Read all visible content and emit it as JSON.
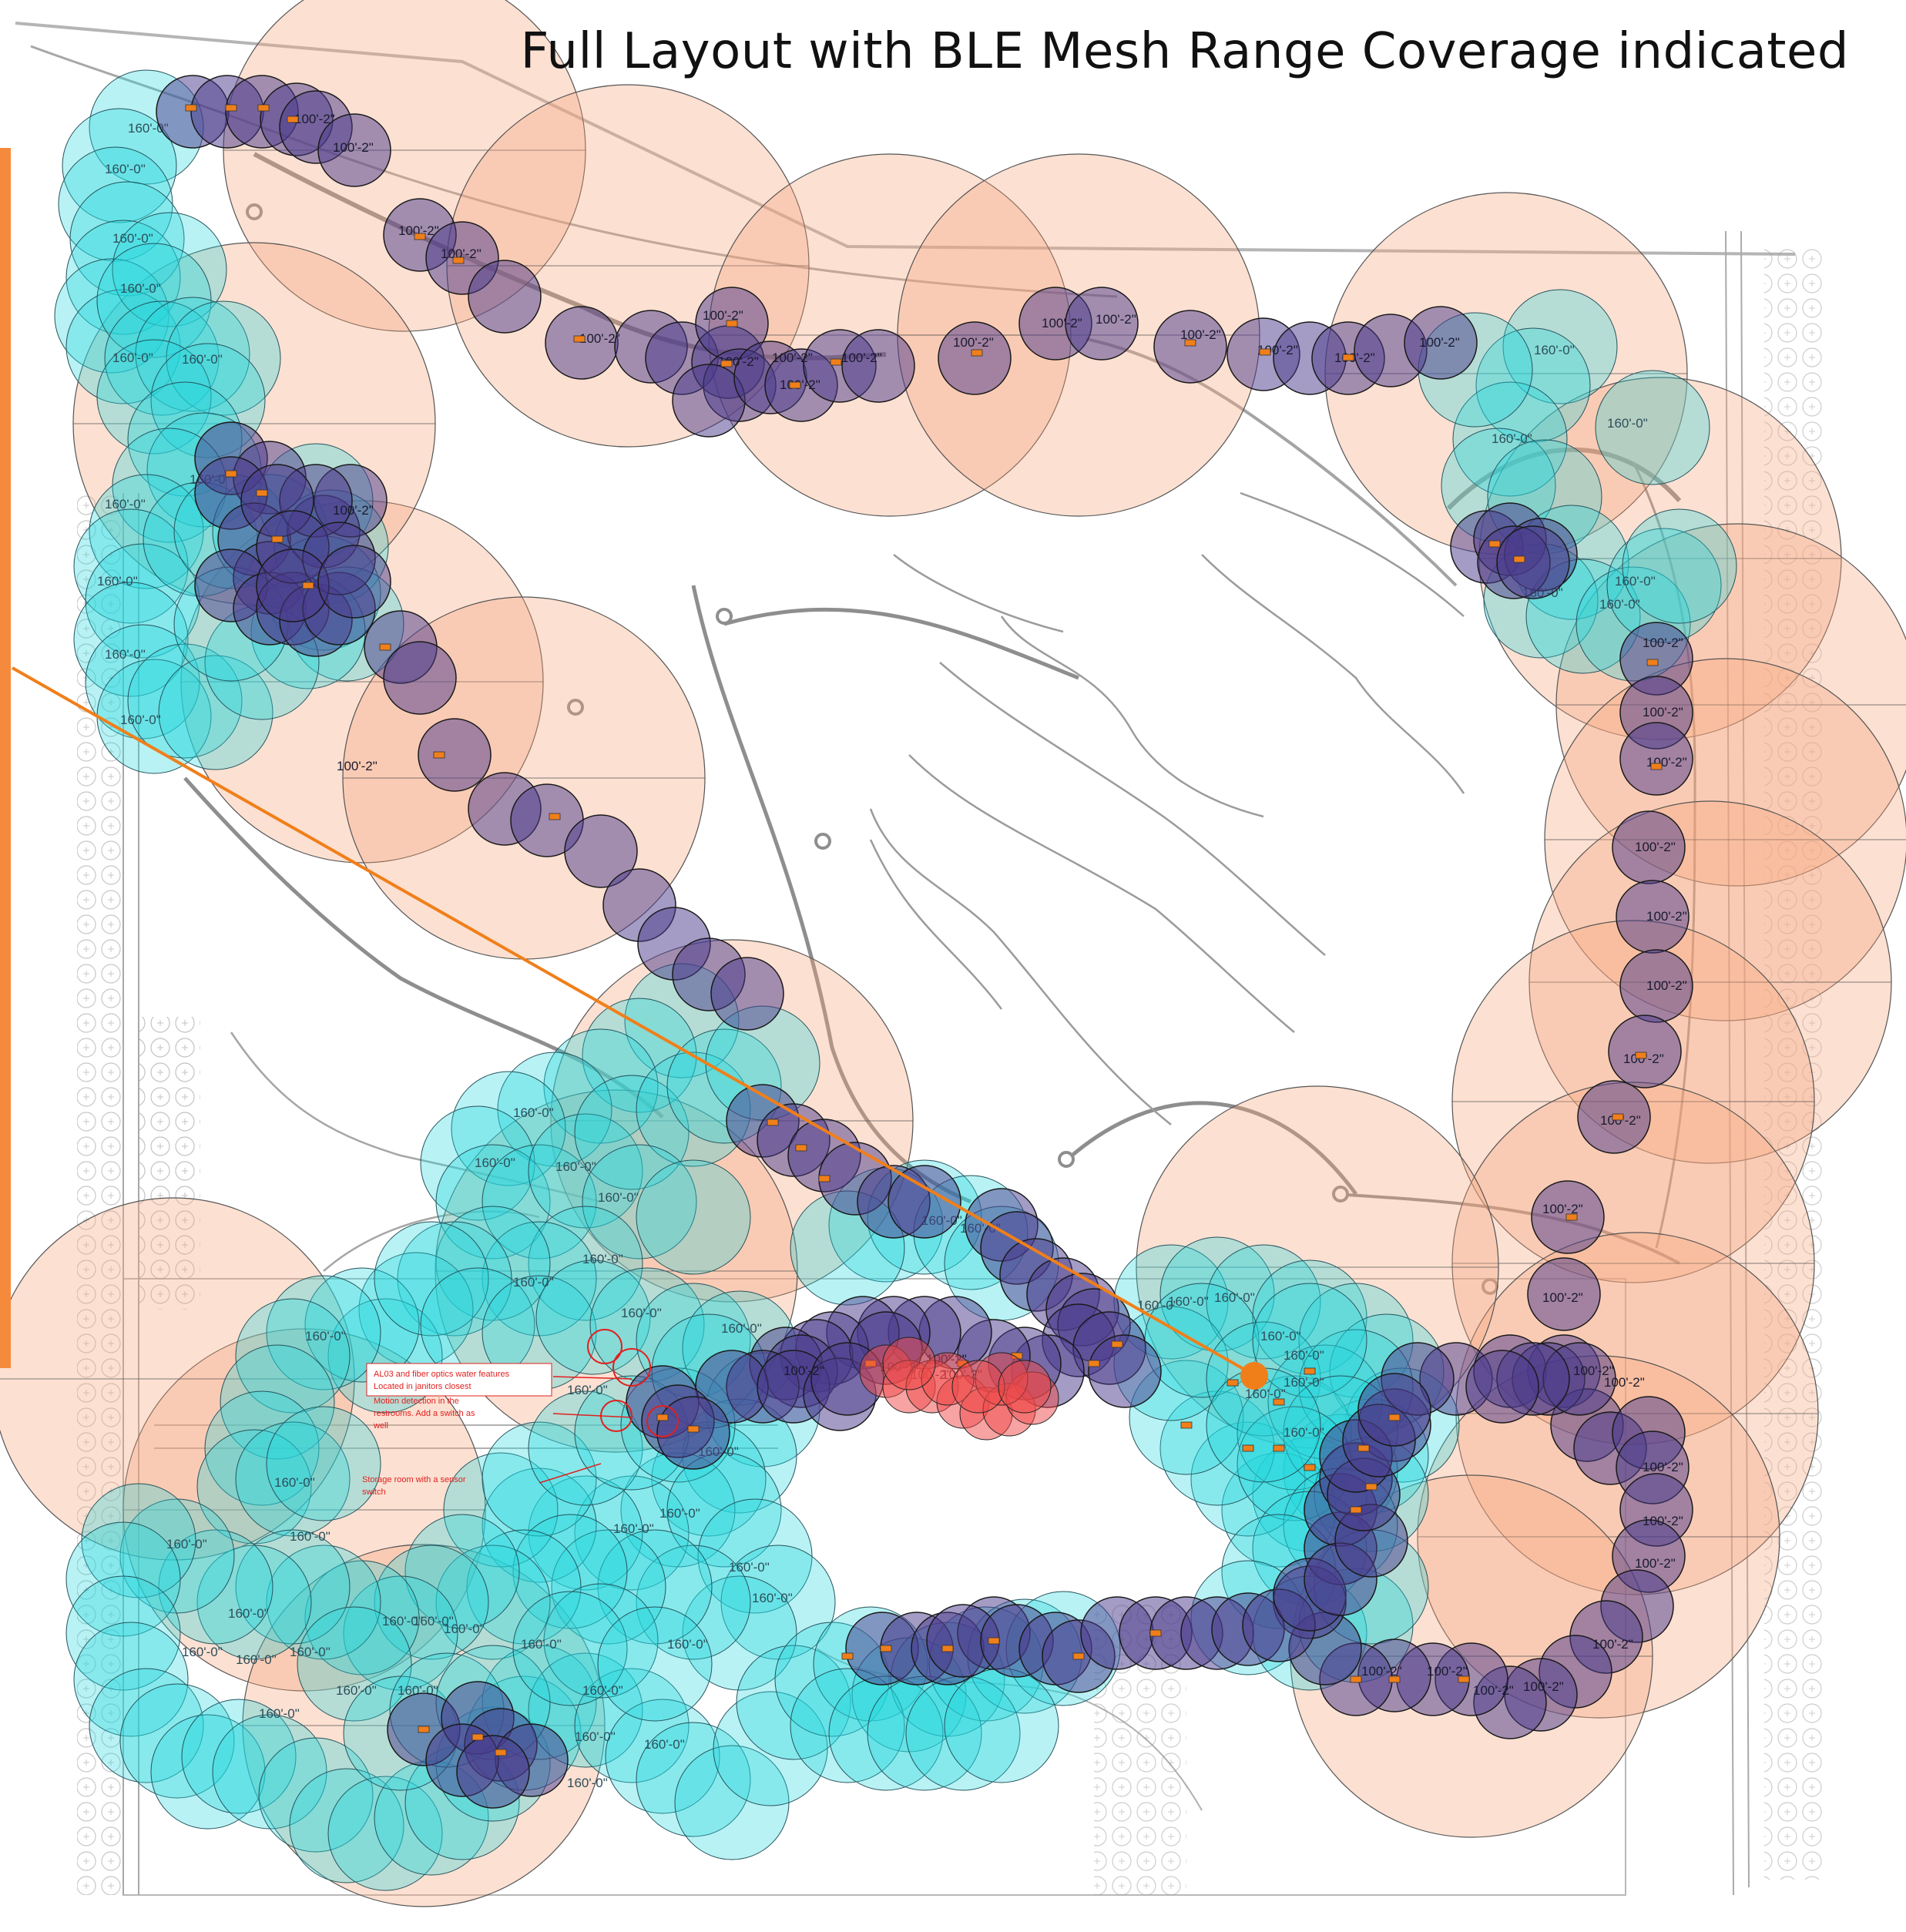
{
  "title": "Full Layout with BLE Mesh Range Coverage indicated",
  "legend": {
    "large_range_label": "160'-0\"",
    "small_range_label": "100'-2\""
  },
  "annotations": {
    "note_1_line_1": "AL03 and fiber optics water features",
    "note_1_line_2": "Located in janitors closest",
    "note_2_line_1": "Motion detection in the",
    "note_2_line_2": "restrooms. Add a switch as",
    "note_2_line_3": "well",
    "note_3_line_1": "Storage room with a sensor",
    "note_3_line_2": "switch"
  },
  "colors": {
    "gateway_peach": "#f6a57b",
    "mesh_cyan": "#22d8dc",
    "node_purple": "#4a3a8c",
    "alert_red": "#f04848",
    "leader_orange": "#f07f1a",
    "bracket_orange": "#f58a3c",
    "note_red": "#e0201e"
  },
  "icons": {
    "node_marker": "orange-node-marker-icon",
    "gateway_marker": "orange-gateway-dot-icon"
  }
}
